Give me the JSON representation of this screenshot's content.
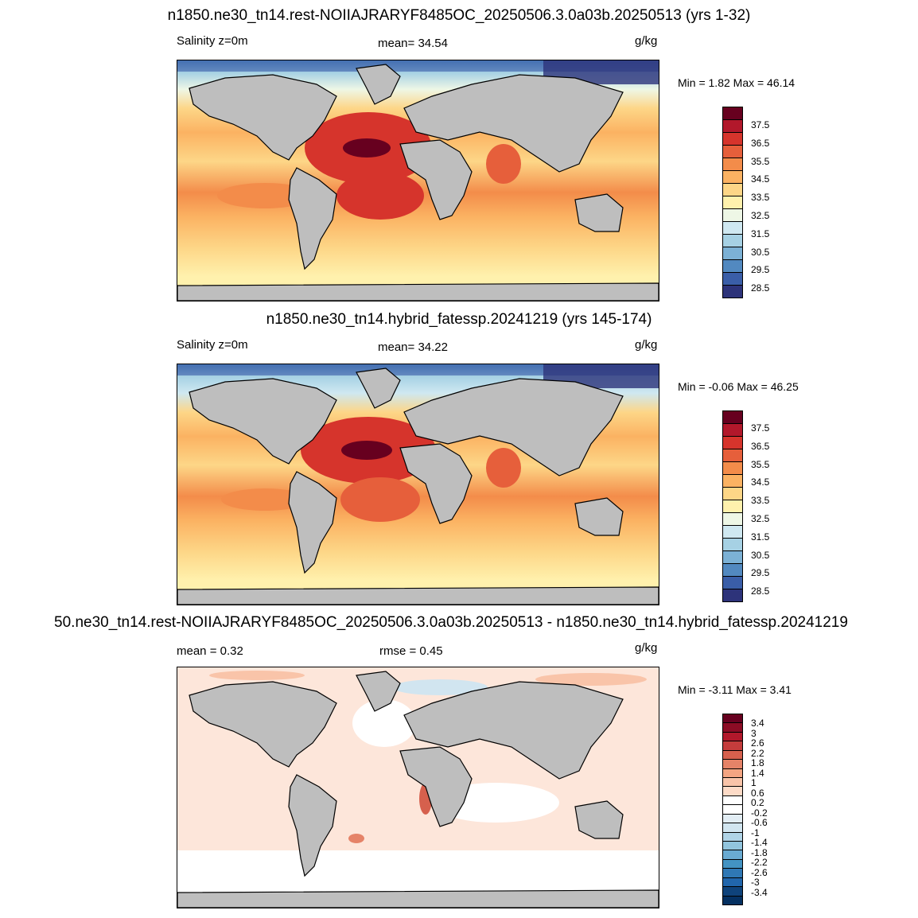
{
  "panels": [
    {
      "title": "n1850.ne30_tn14.rest-NOIIAJRARYF8485OC_20250506.3.0a03b.20250513 (yrs 1-32)",
      "left_label": "Salinity z=0m",
      "center_label": "mean=  34.54",
      "units": "g/kg",
      "minmax": "Min =   1.82 Max =  46.14",
      "colorbar_labels": [
        "37.5",
        "36.5",
        "35.5",
        "34.5",
        "33.5",
        "32.5",
        "31.5",
        "30.5",
        "29.5",
        "28.5"
      ],
      "colors": [
        "#67001f",
        "#b2182b",
        "#d6342c",
        "#e65f3b",
        "#f38c4a",
        "#fbb262",
        "#fdd687",
        "#fff1ad",
        "#eef7e6",
        "#cfe8f1",
        "#a6d1e4",
        "#7cb1d5",
        "#5289c0",
        "#3a5ea8",
        "#2d337a"
      ]
    },
    {
      "title": "n1850.ne30_tn14.hybrid_fatessp.20241219 (yrs 145-174)",
      "left_label": "Salinity z=0m",
      "center_label": "mean=  34.22",
      "units": "g/kg",
      "minmax": "Min =  -0.06 Max =  46.25",
      "colorbar_labels": [
        "37.5",
        "36.5",
        "35.5",
        "34.5",
        "33.5",
        "32.5",
        "31.5",
        "30.5",
        "29.5",
        "28.5"
      ],
      "colors": [
        "#67001f",
        "#b2182b",
        "#d6342c",
        "#e65f3b",
        "#f38c4a",
        "#fbb262",
        "#fdd687",
        "#fff1ad",
        "#eef7e6",
        "#cfe8f1",
        "#a6d1e4",
        "#7cb1d5",
        "#5289c0",
        "#3a5ea8",
        "#2d337a"
      ]
    },
    {
      "title": "50.ne30_tn14.rest-NOIIAJRARYF8485OC_20250506.3.0a03b.20250513 - n1850.ne30_tn14.hybrid_fatessp.20241219",
      "left_label": "mean =   0.32",
      "center_label": "rmse =   0.45",
      "units": "g/kg",
      "minmax": "Min =  -3.11 Max =   3.41",
      "colorbar_labels": [
        "3.4",
        "3",
        "2.6",
        "2.2",
        "1.8",
        "1.4",
        "1",
        "0.6",
        "0.2",
        "-0.2",
        "-0.6",
        "-1",
        "-1.4",
        "-1.8",
        "-2.2",
        "-2.6",
        "-3",
        "-3.4"
      ],
      "colors": [
        "#67001f",
        "#8c0c25",
        "#b2182b",
        "#c43c3c",
        "#d6604d",
        "#e58368",
        "#f4a582",
        "#f9c4a9",
        "#fddbc7",
        "#ffffff",
        "#ffffff",
        "#e2edf4",
        "#d1e5f0",
        "#b0d4e7",
        "#92c5de",
        "#6aabd2",
        "#4393c3",
        "#2f78b5",
        "#2166ac",
        "#0f437b",
        "#053061"
      ]
    }
  ],
  "land_color": "#bebebe",
  "coast_color": "#000000"
}
